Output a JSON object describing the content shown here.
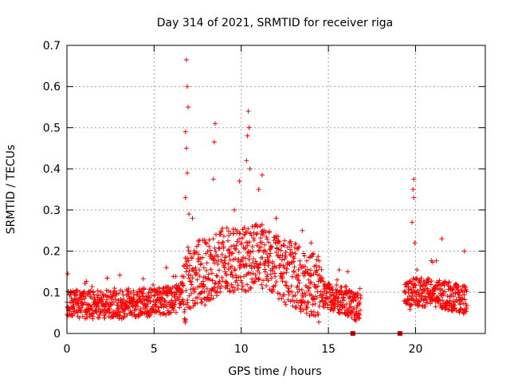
{
  "chart_data": {
    "type": "scatter",
    "title": "Day 314 of 2021, SRMTID for receiver riga",
    "xlabel": "GPS time / hours",
    "ylabel": "SRMTID / TECUs",
    "xlim": [
      0,
      24
    ],
    "ylim": [
      0,
      0.7
    ],
    "x_ticks": [
      0,
      5,
      10,
      15,
      20
    ],
    "x_tick_labels": [
      "0",
      "5",
      "10",
      "15",
      "20"
    ],
    "y_ticks": [
      0,
      0.1,
      0.2,
      0.3,
      0.4,
      0.5,
      0.6,
      0.7
    ],
    "y_tick_labels": [
      "0",
      "0.1",
      "0.2",
      "0.3",
      "0.4",
      "0.5",
      "0.6",
      "0.7"
    ],
    "grid": true,
    "marker": "plus",
    "color": "#ff0000",
    "zero_markers": [
      16.4,
      19.1
    ],
    "envelope": [
      {
        "x": 0.0,
        "y": 0.075
      },
      {
        "x": 1.0,
        "y": 0.07
      },
      {
        "x": 2.0,
        "y": 0.07
      },
      {
        "x": 3.0,
        "y": 0.07
      },
      {
        "x": 4.0,
        "y": 0.075
      },
      {
        "x": 5.0,
        "y": 0.075
      },
      {
        "x": 6.0,
        "y": 0.08
      },
      {
        "x": 6.7,
        "y": 0.09
      },
      {
        "x": 7.0,
        "y": 0.14
      },
      {
        "x": 8.0,
        "y": 0.15
      },
      {
        "x": 9.0,
        "y": 0.18
      },
      {
        "x": 10.0,
        "y": 0.18
      },
      {
        "x": 11.0,
        "y": 0.19
      },
      {
        "x": 12.0,
        "y": 0.16
      },
      {
        "x": 13.0,
        "y": 0.14
      },
      {
        "x": 14.0,
        "y": 0.12
      },
      {
        "x": 15.0,
        "y": 0.09
      },
      {
        "x": 16.0,
        "y": 0.08
      },
      {
        "x": 16.8,
        "y": 0.06
      },
      {
        "x": 19.5,
        "y": 0.09
      },
      {
        "x": 20.0,
        "y": 0.1
      },
      {
        "x": 21.0,
        "y": 0.1
      },
      {
        "x": 22.0,
        "y": 0.09
      },
      {
        "x": 22.9,
        "y": 0.08
      }
    ],
    "spikes": [
      {
        "x": 6.85,
        "y": 0.665
      },
      {
        "x": 6.9,
        "y": 0.6
      },
      {
        "x": 6.95,
        "y": 0.55
      },
      {
        "x": 6.8,
        "y": 0.49
      },
      {
        "x": 6.85,
        "y": 0.45
      },
      {
        "x": 6.9,
        "y": 0.39
      },
      {
        "x": 6.8,
        "y": 0.33
      },
      {
        "x": 7.0,
        "y": 0.29
      },
      {
        "x": 8.5,
        "y": 0.51
      },
      {
        "x": 8.45,
        "y": 0.465
      },
      {
        "x": 8.4,
        "y": 0.375
      },
      {
        "x": 10.4,
        "y": 0.54
      },
      {
        "x": 10.45,
        "y": 0.5
      },
      {
        "x": 10.35,
        "y": 0.48
      },
      {
        "x": 10.3,
        "y": 0.42
      },
      {
        "x": 10.5,
        "y": 0.4
      },
      {
        "x": 9.9,
        "y": 0.37
      },
      {
        "x": 11.2,
        "y": 0.385
      },
      {
        "x": 11.0,
        "y": 0.35
      },
      {
        "x": 19.9,
        "y": 0.375
      },
      {
        "x": 19.85,
        "y": 0.35
      },
      {
        "x": 19.9,
        "y": 0.33
      },
      {
        "x": 19.8,
        "y": 0.27
      },
      {
        "x": 19.95,
        "y": 0.22
      },
      {
        "x": 21.5,
        "y": 0.23
      },
      {
        "x": 22.8,
        "y": 0.2
      },
      {
        "x": 7.2,
        "y": 0.28
      },
      {
        "x": 9.6,
        "y": 0.3
      },
      {
        "x": 12.0,
        "y": 0.28
      },
      {
        "x": 13.5,
        "y": 0.25
      },
      {
        "x": 14.0,
        "y": 0.22
      },
      {
        "x": 15.5,
        "y": 0.13
      },
      {
        "x": 16.1,
        "y": 0.15
      },
      {
        "x": 0.05,
        "y": 0.145
      },
      {
        "x": 5.7,
        "y": 0.16
      }
    ]
  }
}
